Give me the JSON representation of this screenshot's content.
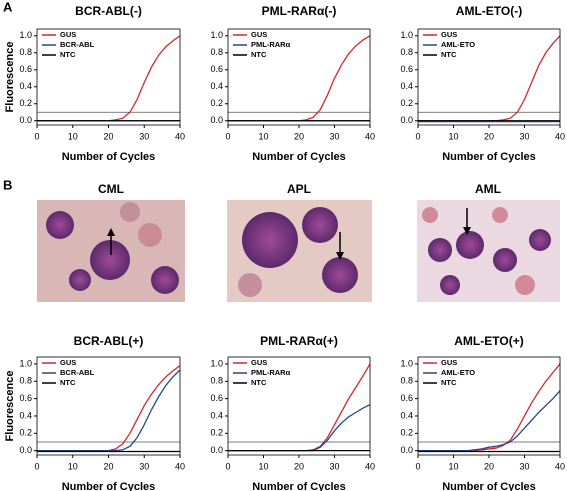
{
  "panel_labels": [
    "A",
    "B"
  ],
  "images": [
    {
      "label": "CML"
    },
    {
      "label": "APL"
    },
    {
      "label": "AML"
    }
  ],
  "chart_data": [
    {
      "type": "line",
      "title": "BCR-ABL(-)",
      "xlabel": "Number of Cycles",
      "ylabel": "Fluorescence",
      "x": [
        0,
        2,
        4,
        6,
        8,
        10,
        12,
        14,
        16,
        18,
        20,
        22,
        24,
        26,
        28,
        30,
        32,
        34,
        36,
        38,
        40
      ],
      "series": [
        {
          "name": "GUS",
          "color": "#d7262b",
          "values": [
            0,
            0,
            0,
            0,
            0,
            0,
            0,
            0,
            0,
            0,
            0,
            0.01,
            0.03,
            0.1,
            0.25,
            0.45,
            0.63,
            0.77,
            0.87,
            0.94,
            1.0
          ]
        },
        {
          "name": "BCR-ABL",
          "color": "#27478c",
          "values": [
            0,
            0,
            0,
            0,
            0,
            0,
            0,
            0,
            0,
            0,
            0,
            0,
            0,
            0,
            0,
            0,
            0,
            0,
            0,
            0,
            0
          ]
        },
        {
          "name": "NTC",
          "color": "#000000",
          "values": [
            0,
            0,
            0,
            0,
            0,
            0,
            0,
            0,
            0,
            0,
            0,
            0,
            0,
            0,
            0,
            0,
            0,
            0,
            0,
            0,
            0
          ]
        }
      ],
      "threshold": 0.1,
      "xlim": [
        0,
        40
      ],
      "xticks": [
        0,
        10,
        20,
        30,
        40
      ],
      "ylim": [
        -0.05,
        1.08
      ],
      "yticks": [
        {
          "value": 0,
          "label": "0.0"
        },
        0.2,
        0.4,
        0.6,
        0.8,
        {
          "value": 1,
          "label": "1.0"
        }
      ]
    },
    {
      "type": "line",
      "title": "PML-RARα(-)",
      "xlabel": "Number of Cycles",
      "x": [
        0,
        2,
        4,
        6,
        8,
        10,
        12,
        14,
        16,
        18,
        20,
        22,
        24,
        26,
        28,
        30,
        32,
        34,
        36,
        38,
        40
      ],
      "series": [
        {
          "name": "GUS",
          "color": "#d7262b",
          "values": [
            0,
            0,
            0,
            0,
            0,
            0,
            0,
            0,
            0,
            0,
            0,
            0.01,
            0.04,
            0.13,
            0.3,
            0.5,
            0.66,
            0.79,
            0.88,
            0.95,
            1.0
          ]
        },
        {
          "name": "PML-RARα",
          "color": "#27478c",
          "values": [
            0,
            0,
            0,
            0,
            0,
            0,
            0,
            0,
            0,
            0,
            0,
            0,
            0,
            0,
            0,
            0,
            0,
            0,
            0,
            0,
            0
          ]
        },
        {
          "name": "NTC",
          "color": "#000000",
          "values": [
            0,
            0,
            0,
            0,
            0,
            0,
            0,
            0,
            0,
            0,
            0,
            0,
            0,
            0,
            0,
            0,
            0,
            0,
            0,
            0,
            0
          ]
        }
      ],
      "threshold": 0.1,
      "xlim": [
        0,
        40
      ],
      "xticks": [
        0,
        10,
        20,
        30,
        40
      ],
      "ylim": [
        -0.05,
        1.08
      ],
      "yticks": [
        {
          "value": 0,
          "label": "0.0"
        },
        0.2,
        0.4,
        0.6,
        0.8,
        {
          "value": 1,
          "label": "1.0"
        }
      ]
    },
    {
      "type": "line",
      "title": "AML-ETO(-)",
      "xlabel": "Number of Cycles",
      "x": [
        0,
        2,
        4,
        6,
        8,
        10,
        12,
        14,
        16,
        18,
        20,
        22,
        24,
        26,
        28,
        30,
        32,
        34,
        36,
        38,
        40
      ],
      "series": [
        {
          "name": "GUS",
          "color": "#d7262b",
          "values": [
            0,
            0,
            0,
            0,
            0,
            0,
            0,
            0,
            0,
            0,
            0,
            0,
            0.01,
            0.03,
            0.1,
            0.25,
            0.45,
            0.65,
            0.8,
            0.91,
            1.0
          ]
        },
        {
          "name": "AML-ETO",
          "color": "#27478c",
          "values": [
            -0.01,
            -0.01,
            -0.01,
            -0.01,
            -0.01,
            -0.01,
            -0.01,
            -0.01,
            -0.01,
            -0.01,
            -0.01,
            -0.01,
            -0.01,
            -0.01,
            -0.01,
            -0.01,
            -0.01,
            -0.01,
            -0.01,
            -0.01,
            -0.01
          ]
        },
        {
          "name": "NTC",
          "color": "#000000",
          "values": [
            0,
            0,
            0,
            0,
            0,
            0,
            0,
            0,
            0,
            0,
            0,
            0,
            0,
            0,
            0,
            0,
            0,
            0,
            0,
            0,
            0
          ]
        }
      ],
      "threshold": 0.1,
      "xlim": [
        0,
        40
      ],
      "xticks": [
        0,
        10,
        20,
        30,
        40
      ],
      "ylim": [
        -0.05,
        1.08
      ],
      "yticks": [
        {
          "value": 0,
          "label": "0.0"
        },
        0.2,
        0.4,
        0.6,
        0.8,
        {
          "value": 1,
          "label": "1.0"
        }
      ]
    },
    {
      "type": "line",
      "title": "BCR-ABL(+)",
      "xlabel": "Number of Cycles",
      "ylabel": "Fluorescence",
      "x": [
        0,
        2,
        4,
        6,
        8,
        10,
        12,
        14,
        16,
        18,
        20,
        22,
        24,
        26,
        28,
        30,
        32,
        34,
        36,
        38,
        40
      ],
      "series": [
        {
          "name": "GUS",
          "color": "#d7262b",
          "values": [
            0,
            0,
            0,
            0,
            0,
            0,
            0,
            0,
            0,
            0,
            0,
            0.02,
            0.08,
            0.2,
            0.36,
            0.52,
            0.65,
            0.76,
            0.85,
            0.92,
            0.98
          ]
        },
        {
          "name": "BCR-ABL",
          "color": "#27478c",
          "values": [
            0,
            0,
            0,
            0,
            0,
            0,
            0,
            0,
            0,
            0,
            0,
            0,
            0.01,
            0.05,
            0.15,
            0.3,
            0.47,
            0.62,
            0.75,
            0.85,
            0.93
          ]
        },
        {
          "name": "NTC",
          "color": "#000000",
          "values": [
            -0.01,
            -0.01,
            -0.01,
            -0.01,
            -0.01,
            -0.01,
            -0.01,
            -0.01,
            -0.01,
            -0.01,
            -0.01,
            -0.01,
            -0.01,
            -0.01,
            -0.01,
            -0.01,
            -0.01,
            -0.01,
            -0.01,
            -0.01,
            -0.01
          ]
        }
      ],
      "threshold": 0.1,
      "xlim": [
        0,
        40
      ],
      "xticks": [
        0,
        10,
        20,
        30,
        40
      ],
      "ylim": [
        -0.05,
        1.08
      ],
      "yticks": [
        {
          "value": 0,
          "label": "0.0"
        },
        0.2,
        0.4,
        0.6,
        0.8,
        {
          "value": 1,
          "label": "1.0"
        }
      ]
    },
    {
      "type": "line",
      "title": "PML-RARα(+)",
      "xlabel": "Number of Cycles",
      "x": [
        0,
        2,
        4,
        6,
        8,
        10,
        12,
        14,
        16,
        18,
        20,
        22,
        24,
        26,
        28,
        30,
        32,
        34,
        36,
        38,
        40
      ],
      "series": [
        {
          "name": "GUS",
          "color": "#d7262b",
          "values": [
            0,
            0,
            0,
            0,
            0,
            0,
            0,
            0,
            0,
            0,
            0,
            0,
            0.01,
            0.05,
            0.15,
            0.3,
            0.45,
            0.6,
            0.73,
            0.86,
            1.0
          ]
        },
        {
          "name": "PML-RARα",
          "color": "#27478c",
          "values": [
            0,
            0,
            0,
            0,
            0,
            0,
            0,
            0,
            0,
            0,
            0,
            0,
            0,
            0.04,
            0.12,
            0.23,
            0.32,
            0.39,
            0.44,
            0.49,
            0.53
          ]
        },
        {
          "name": "NTC",
          "color": "#000000",
          "values": [
            0,
            0,
            0,
            0,
            0,
            0,
            0,
            0,
            0,
            0,
            0,
            0,
            0,
            0,
            0,
            0,
            0,
            0,
            0,
            0,
            0
          ]
        }
      ],
      "threshold": 0.1,
      "xlim": [
        0,
        40
      ],
      "xticks": [
        0,
        10,
        20,
        30,
        40
      ],
      "ylim": [
        -0.05,
        1.08
      ],
      "yticks": [
        {
          "value": 0,
          "label": "0.0"
        },
        0.2,
        0.4,
        0.6,
        0.8,
        {
          "value": 1,
          "label": "1.0"
        }
      ]
    },
    {
      "type": "line",
      "title": "AML-ETO(+)",
      "xlabel": "Number of Cycles",
      "x": [
        0,
        2,
        4,
        6,
        8,
        10,
        12,
        14,
        16,
        18,
        20,
        22,
        24,
        26,
        28,
        30,
        32,
        34,
        36,
        38,
        40
      ],
      "series": [
        {
          "name": "GUS",
          "color": "#d7262b",
          "values": [
            0,
            0,
            0,
            0,
            0,
            0,
            0,
            0,
            0,
            0.01,
            0.02,
            0.03,
            0.06,
            0.12,
            0.25,
            0.4,
            0.55,
            0.68,
            0.8,
            0.9,
            1.0
          ]
        },
        {
          "name": "AML-ETO",
          "color": "#27478c",
          "values": [
            0,
            0,
            0,
            0,
            0,
            0,
            0,
            0,
            0.01,
            0.02,
            0.04,
            0.05,
            0.07,
            0.1,
            0.17,
            0.26,
            0.35,
            0.44,
            0.52,
            0.6,
            0.69
          ]
        },
        {
          "name": "NTC",
          "color": "#000000",
          "values": [
            -0.01,
            -0.01,
            -0.01,
            -0.01,
            -0.01,
            -0.01,
            -0.01,
            -0.01,
            -0.01,
            -0.01,
            -0.01,
            -0.01,
            -0.01,
            -0.01,
            -0.01,
            -0.01,
            -0.01,
            -0.01,
            -0.01,
            -0.01,
            -0.01
          ]
        }
      ],
      "threshold": 0.1,
      "xlim": [
        0,
        40
      ],
      "xticks": [
        0,
        10,
        20,
        30,
        40
      ],
      "ylim": [
        -0.05,
        1.08
      ],
      "yticks": [
        {
          "value": 0,
          "label": "0.0"
        },
        0.2,
        0.4,
        0.6,
        0.8,
        {
          "value": 1,
          "label": "1.0"
        }
      ]
    }
  ]
}
